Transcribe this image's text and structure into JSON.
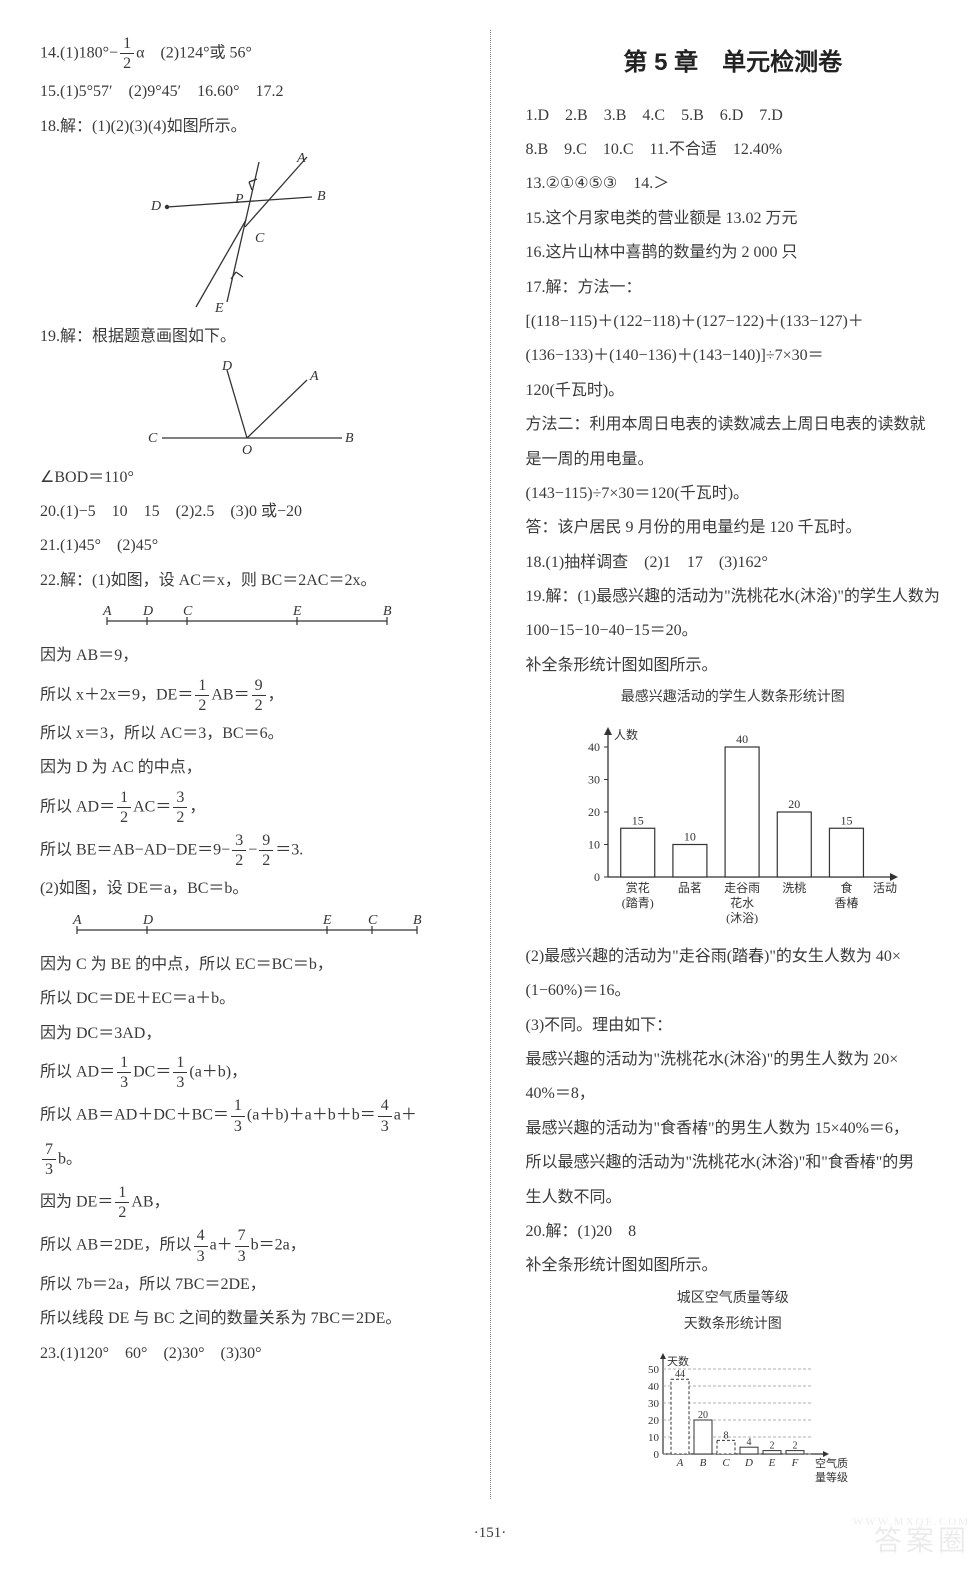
{
  "page_number": "·151·",
  "watermark_main": "答案圈",
  "watermark_sub": "WWW.MXQE.COM",
  "left": {
    "l14": "14.(1)180°−",
    "l14b": "α　(2)124°或 56°",
    "l15": "15.(1)5°57′　(2)9°45′　16.60°　17.2",
    "l18": "18.解：(1)(2)(3)(4)如图所示。",
    "l19": "19.解：根据题意画图如下。",
    "bod": "∠BOD＝110°",
    "l20": "20.(1)−5　10　15　(2)2.5　(3)0 或−20",
    "l21": "21.(1)45°　(2)45°",
    "l22_1": "22.解：(1)如图，设 AC＝x，则 BC＝2AC＝2x。",
    "l22_2": "因为 AB＝9，",
    "l22_3a": "所以 x＋2x＝9，DE＝",
    "l22_3b": "AB＝",
    "l22_3c": "，",
    "l22_4": "所以 x＝3，所以 AC＝3，BC＝6。",
    "l22_5": "因为 D 为 AC 的中点，",
    "l22_6a": "所以 AD＝",
    "l22_6b": "AC＝",
    "l22_6c": "，",
    "l22_7a": "所以 BE＝AB−AD−DE＝9−",
    "l22_7b": "−",
    "l22_7c": "＝3.",
    "l22_8": "(2)如图，设 DE＝a，BC＝b。",
    "l22_9": "因为 C 为 BE 的中点，所以 EC＝BC＝b，",
    "l22_10": "所以 DC＝DE＋EC＝a＋b。",
    "l22_11": "因为 DC＝3AD，",
    "l22_12a": "所以 AD＝",
    "l22_12b": "DC＝",
    "l22_12c": "(a＋b)，",
    "l22_13a": "所以 AB＝AD＋DC＋BC＝",
    "l22_13b": "(a＋b)＋a＋b＋b＝",
    "l22_13c": "a＋",
    "l22_13d": "b。",
    "l22_14a": "因为 DE＝",
    "l22_14b": "AB，",
    "l22_15a": "所以 AB＝2DE，所以",
    "l22_15b": "a＋",
    "l22_15c": "b＝2a，",
    "l22_16": "所以 7b＝2a，所以 7BC＝2DE，",
    "l22_17": "所以线段 DE 与 BC 之间的数量关系为 7BC＝2DE。",
    "l23": "23.(1)120°　60°　(2)30°　(3)30°",
    "fig18": {
      "A": "A",
      "B": "B",
      "C": "C",
      "D": "D",
      "E": "E",
      "P": "P"
    },
    "fig19": {
      "A": "A",
      "B": "B",
      "C": "C",
      "D": "D",
      "O": "O"
    },
    "seg1": {
      "A": "A",
      "D": "D",
      "C": "C",
      "E": "E",
      "B": "B"
    },
    "seg2": {
      "A": "A",
      "D": "D",
      "E": "E",
      "C": "C",
      "B": "B"
    }
  },
  "right": {
    "title": "第 5 章　单元检测卷",
    "ans1": "1.D　2.B　3.B　4.C　5.B　6.D　7.D",
    "ans2": "8.B　9.C　10.C　11.不合适　12.40%",
    "ans3": "13.②①④⑤③　14.＞",
    "l15": "15.这个月家电类的营业额是 13.02 万元",
    "l16": "16.这片山林中喜鹊的数量约为 2 000 只",
    "l17_1": "17.解：方法一：",
    "l17_2": "[(118−115)＋(122−118)＋(127−122)＋(133−127)＋",
    "l17_3": "(136−133)＋(140−136)＋(143−140)]÷7×30＝",
    "l17_4": "120(千瓦时)。",
    "l17_5": "方法二：利用本周日电表的读数减去上周日电表的读数就",
    "l17_6": "是一周的用电量。",
    "l17_7": "(143−115)÷7×30＝120(千瓦时)。",
    "l17_8": "答：该户居民 9 月份的用电量约是 120 千瓦时。",
    "l18": "18.(1)抽样调查　(2)1　17　(3)162°",
    "l19_1": "19.解：(1)最感兴趣的活动为\"洗桃花水(沐浴)\"的学生人数为",
    "l19_2": "100−15−10−40−15＝20。",
    "l19_3": "补全条形统计图如图所示。",
    "chart1_title": "最感兴趣活动的学生人数条形统计图",
    "chart1": {
      "type": "bar",
      "ylabel": "人数",
      "xlabel": "活动",
      "categories": [
        "赏花\n(踏青)",
        "品茗",
        "走谷雨\n花水\n(沐浴)",
        "洗桃",
        "食\n香椿"
      ],
      "cat_line1": [
        "赏花",
        "品茗",
        "走谷雨",
        "洗桃",
        "食"
      ],
      "cat_line2": [
        "(踏青)",
        "",
        "花水",
        "",
        "香椿"
      ],
      "cat_line3": [
        "",
        "",
        "(沐浴)",
        "",
        ""
      ],
      "values": [
        15,
        10,
        40,
        20,
        15
      ],
      "value_labels": [
        "15",
        "10",
        "40",
        "20",
        "15"
      ],
      "ylim": [
        0,
        40
      ],
      "yticks": [
        0,
        10,
        20,
        30,
        40
      ],
      "bar_fill": "#ffffff",
      "bar_stroke": "#333333",
      "axis_color": "#333333",
      "label_fontsize": 12
    },
    "l19_4": "(2)最感兴趣的活动为\"走谷雨(踏春)\"的女生人数为 40×",
    "l19_5": "(1−60%)＝16。",
    "l19_6": "(3)不同。理由如下：",
    "l19_7": "最感兴趣的活动为\"洗桃花水(沐浴)\"的男生人数为 20×",
    "l19_8": "40%＝8，",
    "l19_9": "最感兴趣的活动为\"食香椿\"的男生人数为 15×40%＝6，",
    "l19_10": "所以最感兴趣的活动为\"洗桃花水(沐浴)\"和\"食香椿\"的男",
    "l19_11": "生人数不同。",
    "l20_1": "20.解：(1)20　8",
    "l20_2": "补全条形统计图如图所示。",
    "chart2_t1": "城区空气质量等级",
    "chart2_t2": "天数条形统计图",
    "chart2": {
      "type": "bar",
      "ylabel": "天数",
      "xlabel": "空气质\n量等级",
      "xlabel_l1": "空气质",
      "xlabel_l2": "量等级",
      "categories": [
        "A",
        "B",
        "C",
        "D",
        "E",
        "F"
      ],
      "values": [
        44,
        20,
        8,
        4,
        2,
        2
      ],
      "value_labels": [
        "44",
        "20",
        "8",
        "4",
        "2",
        "2"
      ],
      "yticks": [
        0,
        10,
        20,
        30,
        40,
        50
      ],
      "bar_fill": "#ffffff",
      "dashed_fill": true,
      "bar_stroke": "#333333",
      "axis_color": "#333333",
      "label_fontsize": 11
    }
  }
}
